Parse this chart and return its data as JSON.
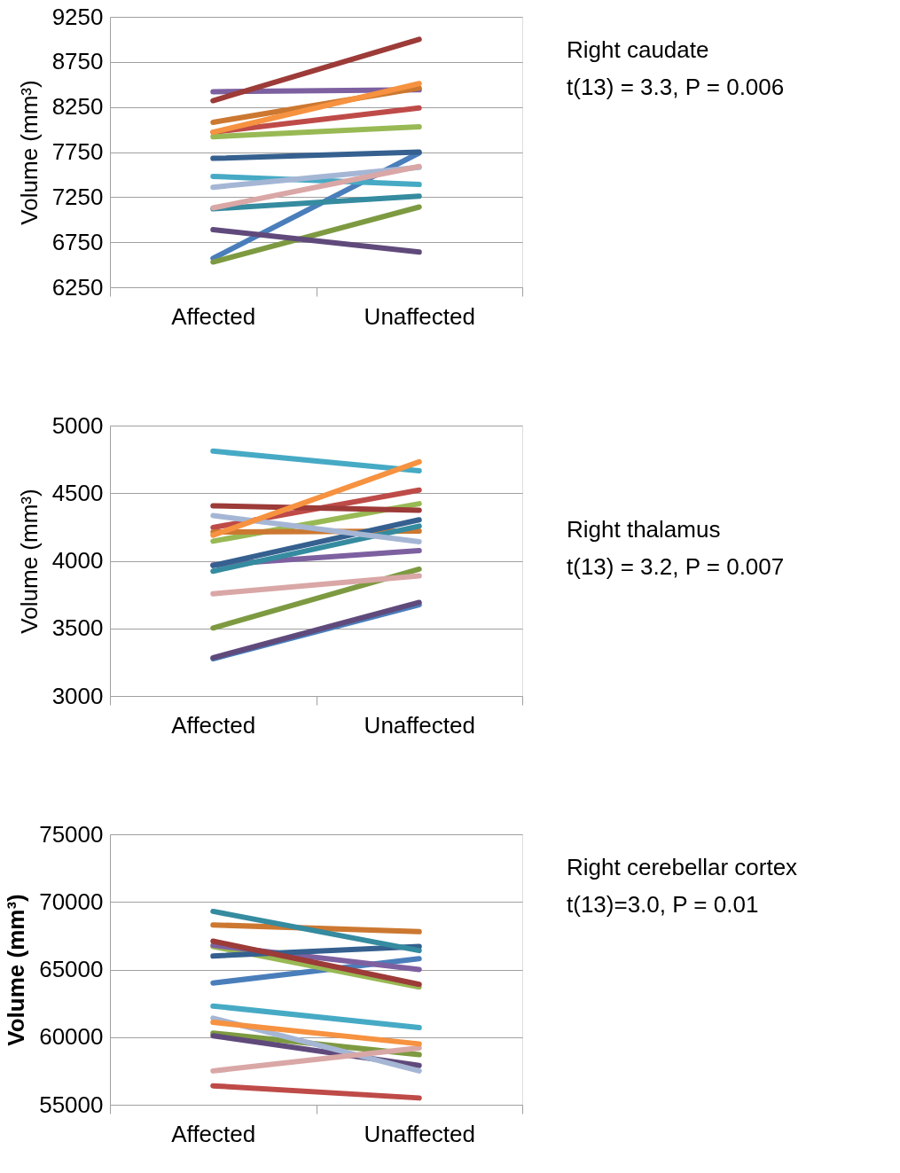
{
  "chart_data": [
    {
      "type": "line",
      "ylabel": "Volume (mm³)",
      "categories": [
        "Affected",
        "Unaffected"
      ],
      "ylim": [
        6250,
        9250
      ],
      "yticks": [
        6250,
        6750,
        7250,
        7750,
        8250,
        8750,
        9250
      ],
      "grid": "y",
      "legend": false,
      "marker": "none",
      "line_style": "solid",
      "annotations": [
        "Right caudate",
        "t(13) = 3.3, P = 0.006"
      ],
      "series": [
        {
          "color": "#4a7ebb",
          "values": [
            6570,
            7740
          ]
        },
        {
          "color": "#be4b48",
          "values": [
            7970,
            8240
          ]
        },
        {
          "color": "#98b954",
          "values": [
            7920,
            8030
          ]
        },
        {
          "color": "#7d60a0",
          "values": [
            8420,
            8440
          ]
        },
        {
          "color": "#46aac5",
          "values": [
            7480,
            7390
          ]
        },
        {
          "color": "#cc7831",
          "values": [
            8080,
            8460
          ]
        },
        {
          "color": "#35608f",
          "values": [
            7680,
            7750
          ]
        },
        {
          "color": "#9c3b38",
          "values": [
            8320,
            9000
          ]
        },
        {
          "color": "#7d9a41",
          "values": [
            6530,
            7140
          ]
        },
        {
          "color": "#604a7b",
          "values": [
            6890,
            6640
          ]
        },
        {
          "color": "#358b9f",
          "values": [
            7120,
            7260
          ]
        },
        {
          "color": "#a5b6d5",
          "values": [
            7360,
            7580
          ]
        },
        {
          "color": "#d9a7a6",
          "values": [
            7130,
            7590
          ]
        },
        {
          "color": "#f69240",
          "values": [
            7970,
            8510
          ]
        }
      ]
    },
    {
      "type": "line",
      "ylabel": "Volume (mm³)",
      "categories": [
        "Affected",
        "Unaffected"
      ],
      "ylim": [
        3000,
        5000
      ],
      "yticks": [
        3000,
        3500,
        4000,
        4500,
        5000
      ],
      "grid": "y",
      "legend": false,
      "marker": "none",
      "line_style": "solid",
      "annotations": [
        "Right thalamus",
        "t(13) = 3.2, P = 0.007"
      ],
      "series": [
        {
          "color": "#4a7ebb",
          "values": [
            3275,
            3675
          ]
        },
        {
          "color": "#be4b48",
          "values": [
            4246,
            4523
          ]
        },
        {
          "color": "#98b954",
          "values": [
            4145,
            4422
          ]
        },
        {
          "color": "#7d60a0",
          "values": [
            3969,
            4075
          ]
        },
        {
          "color": "#46aac5",
          "values": [
            4811,
            4666
          ]
        },
        {
          "color": "#cc7831",
          "values": [
            4213,
            4220
          ]
        },
        {
          "color": "#35608f",
          "values": [
            3965,
            4303
          ]
        },
        {
          "color": "#9c3b38",
          "values": [
            4407,
            4374
          ]
        },
        {
          "color": "#7d9a41",
          "values": [
            3503,
            3938
          ]
        },
        {
          "color": "#604a7b",
          "values": [
            3283,
            3692
          ]
        },
        {
          "color": "#358b9f",
          "values": [
            3923,
            4257
          ]
        },
        {
          "color": "#a5b6d5",
          "values": [
            4334,
            4141
          ]
        },
        {
          "color": "#d9a7a6",
          "values": [
            3756,
            3888
          ]
        },
        {
          "color": "#f69240",
          "values": [
            4189,
            4732
          ]
        }
      ]
    },
    {
      "type": "line",
      "ylabel": "Volume (mm³)",
      "categories": [
        "Affected",
        "Unaffected"
      ],
      "ylim": [
        55000,
        75000
      ],
      "yticks": [
        55000,
        60000,
        65000,
        70000,
        75000
      ],
      "grid": "y",
      "legend": false,
      "marker": "none",
      "line_style": "solid",
      "annotations": [
        "Right cerebellar cortex",
        "t(13)=3.0, P = 0.01"
      ],
      "series": [
        {
          "color": "#4a7ebb",
          "values": [
            64000,
            65800
          ]
        },
        {
          "color": "#be4b48",
          "values": [
            56400,
            55500
          ]
        },
        {
          "color": "#98b954",
          "values": [
            66700,
            63700
          ]
        },
        {
          "color": "#7d60a0",
          "values": [
            66800,
            65000
          ]
        },
        {
          "color": "#46aac5",
          "values": [
            62300,
            60700
          ]
        },
        {
          "color": "#cc7831",
          "values": [
            68300,
            67800
          ]
        },
        {
          "color": "#35608f",
          "values": [
            66000,
            66700
          ]
        },
        {
          "color": "#9c3b38",
          "values": [
            67100,
            63900
          ]
        },
        {
          "color": "#7d9a41",
          "values": [
            60300,
            58700
          ]
        },
        {
          "color": "#604a7b",
          "values": [
            60100,
            57900
          ]
        },
        {
          "color": "#358b9f",
          "values": [
            69300,
            66400
          ]
        },
        {
          "color": "#a5b6d5",
          "values": [
            61400,
            57500
          ]
        },
        {
          "color": "#d9a7a6",
          "values": [
            57500,
            59200
          ]
        },
        {
          "color": "#f69240",
          "values": [
            61100,
            59500
          ]
        }
      ]
    }
  ]
}
